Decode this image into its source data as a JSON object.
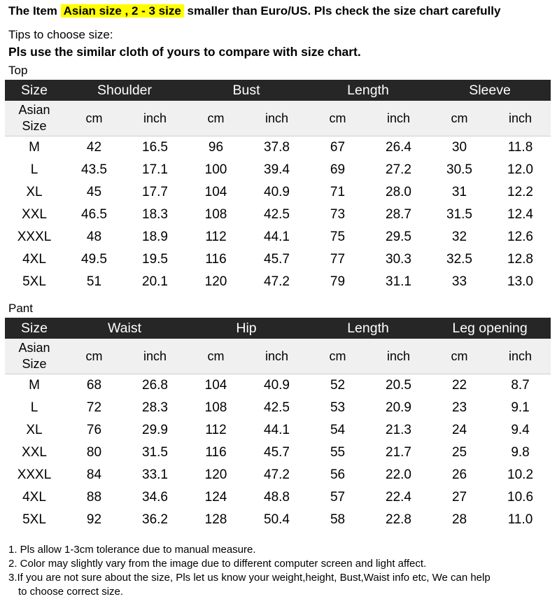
{
  "headline": {
    "prefix": "The Item ",
    "highlight": "Asian size , 2 - 3 size",
    "suffix": " smaller than Euro/US. Pls check the size chart carefully"
  },
  "tips": {
    "title": "Tips to choose size:",
    "body": "Pls use the similar cloth of yours to compare with size chart."
  },
  "top": {
    "label": "Top",
    "size_header": "Size",
    "groups": [
      "Shoulder",
      "Bust",
      "Length",
      "Sleeve"
    ],
    "asian_size": [
      "Asian",
      "Size"
    ],
    "units": [
      "cm",
      "inch",
      "cm",
      "inch",
      "cm",
      "inch",
      "cm",
      "inch"
    ],
    "rows": [
      {
        "size": "M",
        "values": [
          "42",
          "16.5",
          "96",
          "37.8",
          "67",
          "26.4",
          "30",
          "11.8"
        ]
      },
      {
        "size": "L",
        "values": [
          "43.5",
          "17.1",
          "100",
          "39.4",
          "69",
          "27.2",
          "30.5",
          "12.0"
        ]
      },
      {
        "size": "XL",
        "values": [
          "45",
          "17.7",
          "104",
          "40.9",
          "71",
          "28.0",
          "31",
          "12.2"
        ]
      },
      {
        "size": "XXL",
        "values": [
          "46.5",
          "18.3",
          "108",
          "42.5",
          "73",
          "28.7",
          "31.5",
          "12.4"
        ]
      },
      {
        "size": "XXXL",
        "values": [
          "48",
          "18.9",
          "112",
          "44.1",
          "75",
          "29.5",
          "32",
          "12.6"
        ]
      },
      {
        "size": "4XL",
        "values": [
          "49.5",
          "19.5",
          "116",
          "45.7",
          "77",
          "30.3",
          "32.5",
          "12.8"
        ]
      },
      {
        "size": "5XL",
        "values": [
          "51",
          "20.1",
          "120",
          "47.2",
          "79",
          "31.1",
          "33",
          "13.0"
        ]
      }
    ]
  },
  "pant": {
    "label": "Pant",
    "size_header": "Size",
    "groups": [
      "Waist",
      "Hip",
      "Length",
      "Leg opening"
    ],
    "asian_size": [
      "Asian",
      "Size"
    ],
    "units": [
      "cm",
      "inch",
      "cm",
      "inch",
      "cm",
      "inch",
      "cm",
      "inch"
    ],
    "rows": [
      {
        "size": "M",
        "values": [
          "68",
          "26.8",
          "104",
          "40.9",
          "52",
          "20.5",
          "22",
          "8.7"
        ]
      },
      {
        "size": "L",
        "values": [
          "72",
          "28.3",
          "108",
          "42.5",
          "53",
          "20.9",
          "23",
          "9.1"
        ]
      },
      {
        "size": "XL",
        "values": [
          "76",
          "29.9",
          "112",
          "44.1",
          "54",
          "21.3",
          "24",
          "9.4"
        ]
      },
      {
        "size": "XXL",
        "values": [
          "80",
          "31.5",
          "116",
          "45.7",
          "55",
          "21.7",
          "25",
          "9.8"
        ]
      },
      {
        "size": "XXXL",
        "values": [
          "84",
          "33.1",
          "120",
          "47.2",
          "56",
          "22.0",
          "26",
          "10.2"
        ]
      },
      {
        "size": "4XL",
        "values": [
          "88",
          "34.6",
          "124",
          "48.8",
          "57",
          "22.4",
          "27",
          "10.6"
        ]
      },
      {
        "size": "5XL",
        "values": [
          "92",
          "36.2",
          "128",
          "50.4",
          "58",
          "22.8",
          "28",
          "11.0"
        ]
      }
    ]
  },
  "notes": [
    "1. Pls allow 1-3cm tolerance due to manual measure.",
    "2. Color may slightly vary from the image due to different computer screen and light affect.",
    "3.If you are not sure about the size, Pls let us know your weight,height, Bust,Waist info etc, We can help",
    "to choose correct size."
  ],
  "colors": {
    "header_bg": "#262626",
    "subheader_bg": "#f0f0f0",
    "highlight": "#ffff00"
  }
}
